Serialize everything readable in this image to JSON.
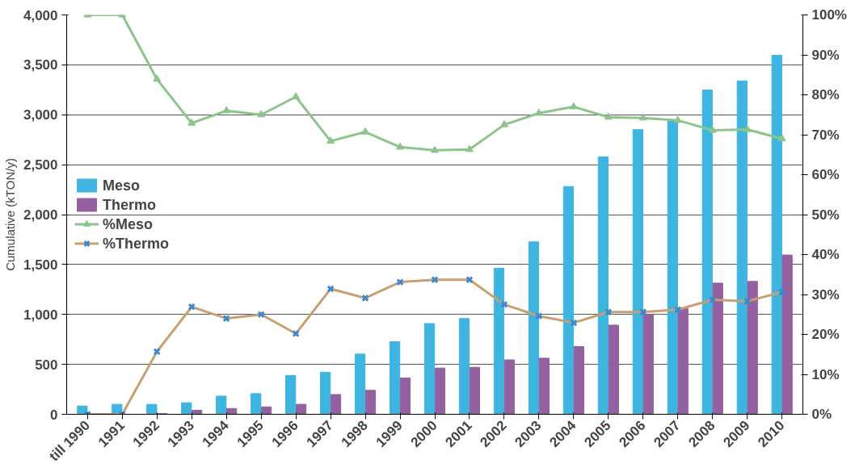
{
  "chart_data": {
    "type": "bar",
    "ylabel": "Cumulative (kTON/y)",
    "categories": [
      "till 1990",
      "1991",
      "1992",
      "1993",
      "1994",
      "1995",
      "1996",
      "1997",
      "1998",
      "1999",
      "2000",
      "2001",
      "2002",
      "2003",
      "2004",
      "2005",
      "2006",
      "2007",
      "2008",
      "2009",
      "2010"
    ],
    "series": [
      {
        "name": "Meso",
        "color": "#3eb5e0",
        "values": [
          83,
          100,
          100,
          116,
          182,
          207,
          388,
          421,
          603,
          727,
          909,
          959,
          1463,
          1727,
          2281,
          2578,
          2851,
          2950,
          3248,
          3339,
          3595
        ]
      },
      {
        "name": "Thermo",
        "color": "#9460a0",
        "values": [
          0,
          0,
          8,
          40,
          58,
          74,
          100,
          198,
          240,
          364,
          463,
          471,
          545,
          562,
          678,
          893,
          1000,
          1058,
          1314,
          1331,
          1595
        ]
      },
      {
        "name": "%Meso",
        "type": "line",
        "axis": "y2",
        "color": "#8cc48c",
        "marker": "triangle",
        "values": [
          100,
          100,
          83.9,
          72.9,
          76,
          75,
          79.5,
          68.4,
          70.7,
          66.9,
          66.1,
          66.3,
          72.5,
          75.4,
          77,
          74.4,
          74.2,
          73.6,
          71.1,
          71.3,
          69
        ]
      },
      {
        "name": "%Thermo",
        "type": "line",
        "axis": "y2",
        "color": "#c8a070",
        "marker": "cross",
        "values": [
          0,
          0,
          15.7,
          26.9,
          24,
          25,
          20.2,
          31.4,
          29.1,
          33.1,
          33.7,
          33.7,
          27.5,
          24.6,
          22.9,
          25.6,
          25.6,
          26.2,
          28.7,
          28.3,
          30.6
        ]
      }
    ],
    "ylim": [
      0,
      4000
    ],
    "yticks": [
      0,
      500,
      {
        "value": 1000,
        "label": "1,000"
      },
      {
        "value": 1500,
        "label": "1,500"
      },
      {
        "value": 2000,
        "label": "2,000"
      },
      {
        "value": 2500,
        "label": "2,500"
      },
      {
        "value": 3000,
        "label": "3,000"
      },
      {
        "value": 3500,
        "label": "3,500"
      },
      {
        "value": 4000,
        "label": "4,000"
      }
    ],
    "y2lim": [
      0,
      100
    ],
    "y2ticks": [
      {
        "value": 0,
        "label": "0%"
      },
      {
        "value": 10,
        "label": "10%"
      },
      {
        "value": 20,
        "label": "20%"
      },
      {
        "value": 30,
        "label": "30%"
      },
      {
        "value": 40,
        "label": "40%"
      },
      {
        "value": 50,
        "label": "50%"
      },
      {
        "value": 60,
        "label": "60%"
      },
      {
        "value": 70,
        "label": "70%"
      },
      {
        "value": 80,
        "label": "80%"
      },
      {
        "value": 90,
        "label": "90%"
      },
      {
        "value": 100,
        "label": "100%"
      }
    ],
    "grid": "y",
    "legend": "left"
  }
}
